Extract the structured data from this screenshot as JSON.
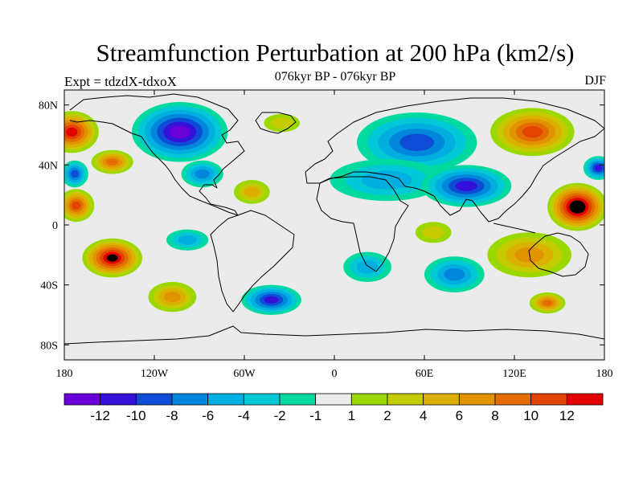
{
  "title": "Streamfunction Perturbation at 200 hPa (km2/s)",
  "subtitle_left": "Expt = tdzdX-tdxoX",
  "subtitle_center": "076kyr BP - 076kyr BP",
  "subtitle_right": "DJF",
  "map": {
    "projection": "cylindrical equidistant",
    "lon_range": [
      -180,
      180
    ],
    "lat_range": [
      -90,
      90
    ],
    "background_color": "#ebebeb",
    "coastline_color": "#000000",
    "x_ticks": [
      {
        "lon": -180,
        "label": "180"
      },
      {
        "lon": -120,
        "label": "120W"
      },
      {
        "lon": -60,
        "label": "60W"
      },
      {
        "lon": 0,
        "label": "0"
      },
      {
        "lon": 60,
        "label": "60E"
      },
      {
        "lon": 120,
        "label": "120E"
      },
      {
        "lon": 180,
        "label": "180"
      }
    ],
    "y_ticks": [
      {
        "lat": 80,
        "label": "80N"
      },
      {
        "lat": 40,
        "label": "40N"
      },
      {
        "lat": 0,
        "label": "0"
      },
      {
        "lat": -40,
        "label": "40S"
      },
      {
        "lat": -80,
        "label": "80S"
      }
    ],
    "anomalies": [
      {
        "lon": -175,
        "lat": 62,
        "rx": 18,
        "ry": 14,
        "level": 7
      },
      {
        "lon": -148,
        "lat": 42,
        "rx": 14,
        "ry": 8,
        "level": 5
      },
      {
        "lon": -173,
        "lat": 34,
        "rx": 9,
        "ry": 9,
        "level": -5
      },
      {
        "lon": -172,
        "lat": 13,
        "rx": 12,
        "ry": 11,
        "level": 6
      },
      {
        "lon": -103,
        "lat": 62,
        "rx": 32,
        "ry": 20,
        "level": -7
      },
      {
        "lon": -88,
        "lat": 34,
        "rx": 14,
        "ry": 9,
        "level": -4
      },
      {
        "lon": -55,
        "lat": 22,
        "rx": 12,
        "ry": 8,
        "level": 3
      },
      {
        "lon": -35,
        "lat": 68,
        "rx": 12,
        "ry": 6,
        "level": 2
      },
      {
        "lon": -148,
        "lat": -22,
        "rx": 20,
        "ry": 13,
        "level": 8
      },
      {
        "lon": -108,
        "lat": -48,
        "rx": 16,
        "ry": 10,
        "level": 4
      },
      {
        "lon": -98,
        "lat": -10,
        "rx": 14,
        "ry": 7,
        "level": -3
      },
      {
        "lon": -42,
        "lat": -50,
        "rx": 20,
        "ry": 10,
        "level": -6
      },
      {
        "lon": 55,
        "lat": 55,
        "rx": 40,
        "ry": 20,
        "level": -5
      },
      {
        "lon": 35,
        "lat": 30,
        "rx": 38,
        "ry": 14,
        "level": -3
      },
      {
        "lon": 88,
        "lat": 26,
        "rx": 30,
        "ry": 14,
        "level": -6
      },
      {
        "lon": 132,
        "lat": 62,
        "rx": 28,
        "ry": 16,
        "level": 6
      },
      {
        "lon": 162,
        "lat": 12,
        "rx": 20,
        "ry": 16,
        "level": 9
      },
      {
        "lon": 176,
        "lat": 38,
        "rx": 10,
        "ry": 8,
        "level": -6
      },
      {
        "lon": 130,
        "lat": -20,
        "rx": 28,
        "ry": 15,
        "level": 4
      },
      {
        "lon": 142,
        "lat": -52,
        "rx": 12,
        "ry": 7,
        "level": 5
      },
      {
        "lon": 80,
        "lat": -33,
        "rx": 20,
        "ry": 12,
        "level": -4
      },
      {
        "lon": 22,
        "lat": -28,
        "rx": 16,
        "ry": 10,
        "level": -3
      },
      {
        "lon": 66,
        "lat": -5,
        "rx": 12,
        "ry": 7,
        "level": 2
      }
    ]
  },
  "colorbar": {
    "colors": [
      "#6a00d8",
      "#3410d8",
      "#0e4cd6",
      "#0087dc",
      "#00aee0",
      "#00c8d6",
      "#00d9a0",
      "#ebebeb",
      "#9bd800",
      "#c4cc00",
      "#dcb000",
      "#e19400",
      "#e46c00",
      "#e24400",
      "#e20000"
    ],
    "labels": [
      "-12",
      "-10",
      "-8",
      "-6",
      "-4",
      "-2",
      "-1",
      "1",
      "2",
      "4",
      "6",
      "8",
      "10",
      "12"
    ]
  }
}
